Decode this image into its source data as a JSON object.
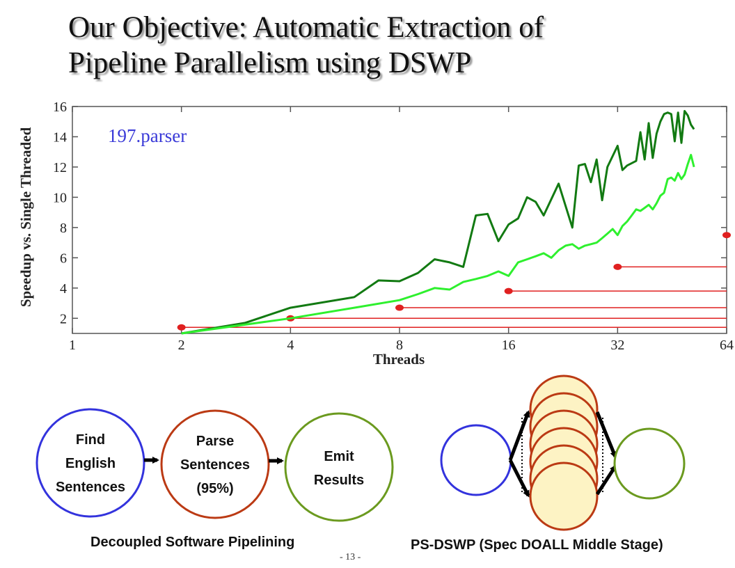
{
  "slide": {
    "title_line1": "Our Objective: Automatic Extraction of",
    "title_line2": "Pipeline Parallelism using DSWP",
    "page_number": "- 13 -"
  },
  "chart_data": {
    "type": "line",
    "annotation": "197.parser",
    "xlabel": "Threads",
    "ylabel": "Speedup vs. Single Threaded",
    "x_scale": "log2",
    "xlim": [
      1,
      64
    ],
    "ylim": [
      1,
      16
    ],
    "x_ticks": [
      1,
      2,
      4,
      8,
      16,
      32,
      64
    ],
    "y_ticks": [
      2,
      4,
      6,
      8,
      10,
      12,
      14,
      16
    ],
    "grid": false,
    "colors": {
      "dark": "#127a12",
      "light": "#2ef02e",
      "ref": "#e02020"
    },
    "series": [
      {
        "color": "dark",
        "x": [
          2,
          3,
          4,
          6,
          7,
          8,
          9,
          10,
          11,
          12,
          13,
          14,
          15,
          16,
          17,
          18,
          19,
          20,
          22,
          24,
          25,
          26,
          27,
          28,
          29,
          30,
          32,
          33,
          34,
          36,
          37,
          38,
          39,
          40,
          41,
          42,
          43,
          44,
          45,
          46,
          47,
          48,
          49,
          50,
          51,
          52
        ],
        "y": [
          1.0,
          1.7,
          2.7,
          3.4,
          4.5,
          4.45,
          5.0,
          5.9,
          5.7,
          5.4,
          8.8,
          8.9,
          7.1,
          8.2,
          8.6,
          10.0,
          9.7,
          8.8,
          10.9,
          8.0,
          12.1,
          12.2,
          11.0,
          12.5,
          9.8,
          12.0,
          13.4,
          11.8,
          12.1,
          12.4,
          14.3,
          12.5,
          14.9,
          12.6,
          14.2,
          15.0,
          15.5,
          15.6,
          15.5,
          13.7,
          15.6,
          13.6,
          15.7,
          15.4,
          14.8,
          14.5
        ]
      },
      {
        "color": "light",
        "x": [
          2,
          4,
          6,
          8,
          9,
          10,
          11,
          12,
          13,
          14,
          15,
          16,
          17,
          18,
          19,
          20,
          21,
          22,
          23,
          24,
          25,
          26,
          27,
          28,
          29,
          30,
          31,
          32,
          33,
          34,
          35,
          36,
          37,
          38,
          39,
          40,
          41,
          42,
          43,
          44,
          45,
          46,
          47,
          48,
          49,
          50,
          51,
          52
        ],
        "y": [
          1.0,
          2.0,
          2.7,
          3.2,
          3.6,
          4.0,
          3.9,
          4.4,
          4.6,
          4.8,
          5.1,
          4.8,
          5.7,
          5.9,
          6.1,
          6.3,
          6.0,
          6.5,
          6.8,
          6.9,
          6.6,
          6.8,
          6.9,
          7.0,
          7.3,
          7.6,
          7.9,
          7.5,
          8.1,
          8.4,
          8.8,
          9.2,
          9.1,
          9.3,
          9.5,
          9.2,
          9.6,
          10.1,
          10.3,
          11.2,
          11.3,
          11.1,
          11.6,
          11.2,
          11.5,
          12.2,
          12.8,
          12.0
        ]
      }
    ],
    "reference_levels": [
      {
        "threads": 2,
        "speedup": 1.4
      },
      {
        "threads": 4,
        "speedup": 2.0
      },
      {
        "threads": 8,
        "speedup": 2.7
      },
      {
        "threads": 16,
        "speedup": 3.8
      },
      {
        "threads": 32,
        "speedup": 5.4
      },
      {
        "threads": 64,
        "speedup": 7.5
      }
    ]
  },
  "pipeline": {
    "stage1": [
      "Find",
      "English",
      "Sentences"
    ],
    "stage2": [
      "Parse",
      "Sentences",
      "(95%)"
    ],
    "stage3": [
      "Emit",
      "Results"
    ],
    "caption": "Decoupled Software Pipelining",
    "colors": {
      "stage1": "#3333dd",
      "stage2": "#bb3a14",
      "stage3": "#6b9a1f"
    }
  },
  "psdswp": {
    "caption": "PS-DSWP (Spec DOALL Middle Stage)",
    "middle_copies": 6,
    "middle_fill": "#fdf3c4"
  }
}
